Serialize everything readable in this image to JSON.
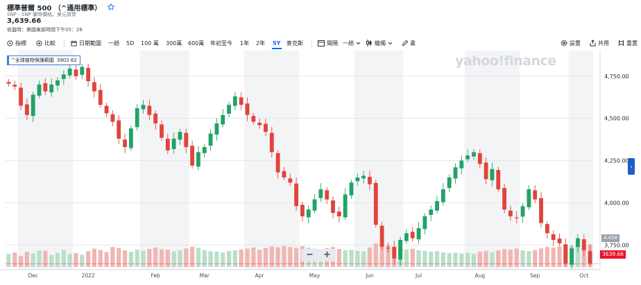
{
  "header": {
    "title": "標準普爾 500 （^通用標準）",
    "source": "SNP - SNP 實時價格。美元貨幣",
    "price": "3,639.66",
    "close_time": "收盤時：美國東部時間下午05：28"
  },
  "toolbar": {
    "indicators": "指標",
    "compare": "比較",
    "date_range": "日期範圍",
    "ranges": [
      "一趟",
      "5D",
      "100 萬",
      "300萬",
      "600萬",
      "年初至今",
      "1年",
      "2年",
      "5Y",
      "麥克斯"
    ],
    "active_range": "5Y",
    "interval": "間隔",
    "interval_value": "一趟",
    "chart_type": "蠟燭",
    "draw": "畫",
    "settings": "設置",
    "share": "共用",
    "reset": "重置"
  },
  "tooltip": {
    "label": "^全球植物保護範圍",
    "value": "3902.62"
  },
  "watermark": "yahoo!finance",
  "badges": {
    "volume": "4.458",
    "last": "3639.66"
  },
  "colors": {
    "up": "#21a366",
    "down": "#e0443c",
    "accent": "#0f69ff",
    "last_badge": "#eb0f29"
  },
  "chart_data": {
    "type": "candlestick",
    "yticks": [
      "4,750.00",
      "4,500.00",
      "4,250.00",
      "4,000.00",
      "3,750.00"
    ],
    "ytick_values": [
      4750,
      4500,
      4250,
      4000,
      3750
    ],
    "ylim": [
      3620,
      4860
    ],
    "x_labels": [
      "Dec",
      "2022",
      "Feb",
      "Mar",
      "Apr",
      "May",
      "Jun",
      "Jul",
      "Aug",
      "Sep",
      "Oct"
    ],
    "x_label_index": [
      4,
      13,
      24,
      32,
      41,
      50,
      59,
      67,
      77,
      86,
      94
    ],
    "closes": [
      4705,
      4688,
      4575,
      4520,
      4640,
      4700,
      4660,
      4700,
      4725,
      4760,
      4795,
      4750,
      4805,
      4720,
      4660,
      4580,
      4530,
      4480,
      4380,
      4330,
      4440,
      4560,
      4580,
      4520,
      4470,
      4385,
      4310,
      4380,
      4420,
      4330,
      4220,
      4300,
      4330,
      4410,
      4470,
      4520,
      4580,
      4630,
      4580,
      4520,
      4480,
      4460,
      4420,
      4300,
      4180,
      4150,
      4120,
      3980,
      3920,
      3960,
      4020,
      4080,
      4020,
      3940,
      3920,
      4050,
      4120,
      4150,
      4160,
      4110,
      3870,
      3740,
      3730,
      3670,
      3780,
      3820,
      3790,
      3850,
      3920,
      3960,
      4010,
      4080,
      4150,
      4210,
      4250,
      4280,
      4300,
      4230,
      4140,
      4200,
      4080,
      3960,
      3920,
      3910,
      3980,
      4080,
      4020,
      3880,
      3820,
      3780,
      3760,
      3640,
      3730,
      3790,
      3720,
      3639.66
    ],
    "volumes": [
      0.47,
      0.52,
      0.4,
      0.55,
      0.49,
      0.6,
      0.58,
      0.43,
      0.51,
      0.62,
      0.48,
      0.5,
      0.44,
      0.57,
      0.66,
      0.61,
      0.54,
      0.72,
      0.68,
      0.6,
      0.55,
      0.63,
      0.59,
      0.65,
      0.7,
      0.64,
      0.62,
      0.56,
      0.6,
      0.67,
      0.73,
      0.69,
      0.61,
      0.57,
      0.55,
      0.52,
      0.58,
      0.6,
      0.63,
      0.66,
      0.7,
      0.62,
      0.68,
      0.74,
      0.71,
      0.76,
      0.72,
      0.69,
      0.75,
      0.7,
      0.66,
      0.64,
      0.68,
      0.72,
      0.65,
      0.6,
      0.62,
      0.58,
      0.56,
      0.7,
      0.85,
      0.9,
      0.78,
      0.74,
      0.69,
      0.63,
      0.66,
      0.6,
      0.58,
      0.55,
      0.57,
      0.53,
      0.5,
      0.52,
      0.49,
      0.51,
      0.48,
      0.55,
      0.58,
      0.53,
      0.6,
      0.64,
      0.62,
      0.66,
      0.6,
      0.57,
      0.61,
      0.67,
      0.72,
      0.7,
      0.74,
      0.8,
      0.76,
      0.73,
      0.78,
      0.82
    ]
  }
}
